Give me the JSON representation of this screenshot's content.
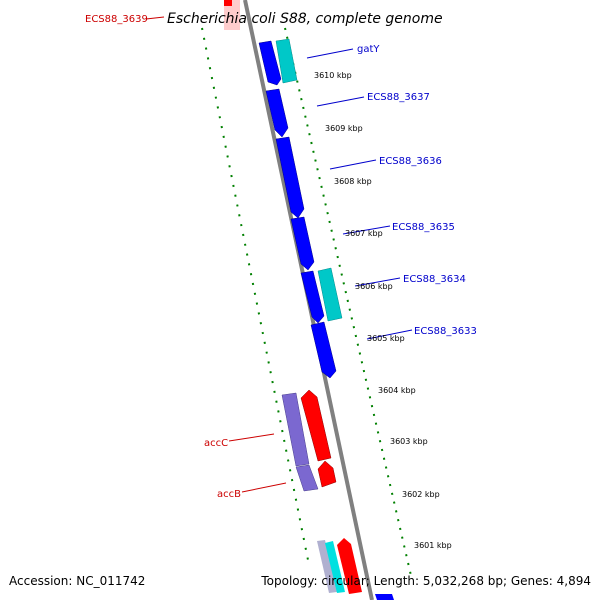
{
  "title": "Escherichia coli S88, complete genome",
  "top_gene": "ECS88_3639",
  "colors": {
    "forward_cds": "#0000ff",
    "forward_alt": "#00c8c8",
    "reverse_cds": "#ff0000",
    "reverse_alt": "#7b68d0",
    "backbone": "#808080",
    "ticks": "#008000",
    "forward_label": "#0000cc",
    "reverse_label": "#cc0000"
  },
  "forward_genes": [
    {
      "label": "gatY"
    },
    {
      "label": "ECS88_3637"
    },
    {
      "label": "ECS88_3636"
    },
    {
      "label": "ECS88_3635"
    },
    {
      "label": "ECS88_3634"
    },
    {
      "label": "ECS88_3633"
    }
  ],
  "reverse_genes": [
    {
      "label": "accC"
    },
    {
      "label": "accB"
    }
  ],
  "scale_labels": [
    "3610 kbp",
    "3609 kbp",
    "3608 kbp",
    "3607 kbp",
    "3606 kbp",
    "3605 kbp",
    "3604 kbp",
    "3603 kbp",
    "3602 kbp",
    "3601 kbp"
  ],
  "footer": {
    "accession": "Accession: NC_011742",
    "summary": "Topology: circular; Length: 5,032,268 bp; Genes: 4,894"
  }
}
